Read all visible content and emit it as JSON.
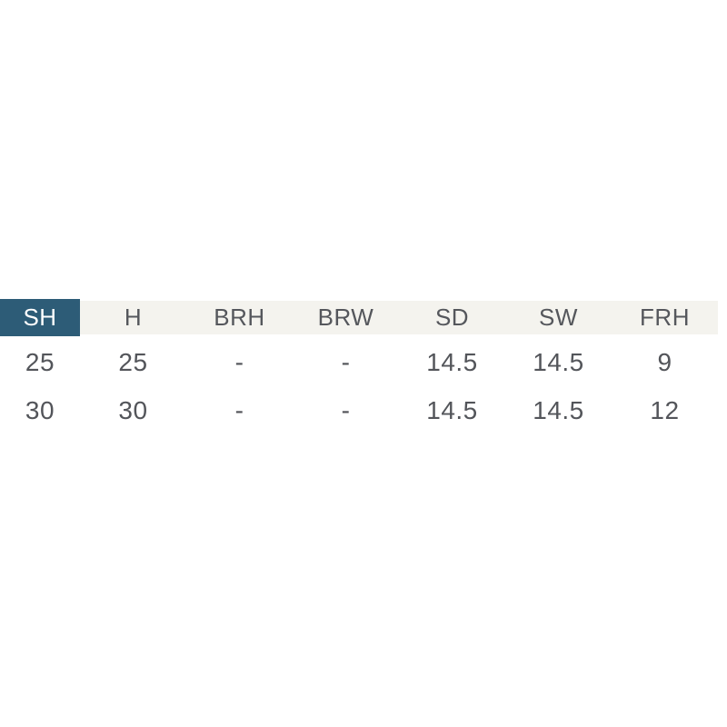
{
  "chart_data": {
    "type": "table",
    "title": "",
    "columns": [
      "SH",
      "H",
      "BRH",
      "BRW",
      "SD",
      "SW",
      "FRH"
    ],
    "rows": [
      [
        "25",
        "25",
        "-",
        "-",
        "14.5",
        "14.5",
        "9"
      ],
      [
        "30",
        "30",
        "-",
        "-",
        "14.5",
        "14.5",
        "12"
      ]
    ],
    "highlighted_column": "SH",
    "legend_position": "none",
    "grid": false
  },
  "colors": {
    "page_bg": "#ffffff",
    "header_bg": "#f4f3ee",
    "highlight_bg": "#2d5c77",
    "highlight_text": "#ffffff",
    "header_text": "#55575c",
    "body_text": "#53555a"
  }
}
